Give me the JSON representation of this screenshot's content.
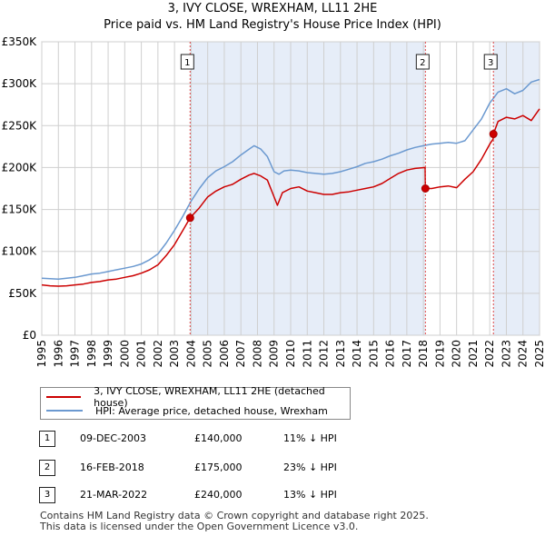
{
  "title_line1": "3, IVY CLOSE, WREXHAM, LL11 2HE",
  "title_line2": "Price paid vs. HM Land Registry's House Price Index (HPI)",
  "chart_data": {
    "type": "line",
    "title": "Price paid vs. HM Land Registry's House Price Index (HPI)",
    "xlim": [
      1995,
      2025
    ],
    "ylim": [
      0,
      350000
    ],
    "x_ticks": [
      "1995",
      "1996",
      "1997",
      "1998",
      "1999",
      "2000",
      "2001",
      "2002",
      "2003",
      "2004",
      "2005",
      "2006",
      "2007",
      "2008",
      "2009",
      "2010",
      "2011",
      "2012",
      "2013",
      "2014",
      "2015",
      "2016",
      "2017",
      "2018",
      "2019",
      "2020",
      "2021",
      "2022",
      "2023",
      "2024",
      "2025"
    ],
    "y_ticks": [
      {
        "value": 0,
        "label": "£0"
      },
      {
        "value": 50000,
        "label": "£50K"
      },
      {
        "value": 100000,
        "label": "£100K"
      },
      {
        "value": 150000,
        "label": "£150K"
      },
      {
        "value": 200000,
        "label": "£200K"
      },
      {
        "value": 250000,
        "label": "£250K"
      },
      {
        "value": 300000,
        "label": "£300K"
      },
      {
        "value": 350000,
        "label": "£350K"
      }
    ],
    "series": [
      {
        "name": "3, IVY CLOSE, WREXHAM, LL11 2HE (detached house)",
        "color": "#cc0000",
        "x": [
          1995.0,
          1995.5,
          1996.0,
          1996.5,
          1997.0,
          1997.5,
          1998.0,
          1998.5,
          1999.0,
          1999.5,
          2000.0,
          2000.5,
          2001.0,
          2001.5,
          2002.0,
          2002.5,
          2003.0,
          2003.5,
          2003.94,
          2004.5,
          2005.0,
          2005.5,
          2006.0,
          2006.5,
          2007.0,
          2007.5,
          2007.8,
          2008.2,
          2008.6,
          2008.9,
          2009.2,
          2009.5,
          2010.0,
          2010.5,
          2011.0,
          2011.5,
          2012.0,
          2012.5,
          2013.0,
          2013.5,
          2014.0,
          2014.5,
          2015.0,
          2015.5,
          2016.0,
          2016.5,
          2017.0,
          2017.5,
          2018.1,
          2018.12,
          2018.5,
          2019.0,
          2019.5,
          2020.0,
          2020.5,
          2021.0,
          2021.5,
          2022.0,
          2022.2,
          2022.22,
          2022.5,
          2023.0,
          2023.5,
          2024.0,
          2024.5,
          2025.0
        ],
        "y": [
          60000,
          59000,
          58500,
          59000,
          60000,
          61000,
          63000,
          64000,
          66000,
          67000,
          69000,
          71000,
          74000,
          78000,
          84000,
          95000,
          108000,
          125000,
          140000,
          152000,
          165000,
          172000,
          177000,
          180000,
          186000,
          191000,
          193000,
          190000,
          185000,
          170000,
          155000,
          170000,
          175000,
          177000,
          172000,
          170000,
          168000,
          168000,
          170000,
          171000,
          173000,
          175000,
          177000,
          181000,
          187000,
          193000,
          197000,
          199000,
          200000,
          175000,
          175000,
          177000,
          178000,
          176000,
          186000,
          195000,
          210000,
          228000,
          234000,
          240000,
          255000,
          260000,
          258000,
          262000,
          256000,
          270000
        ]
      },
      {
        "name": "HPI: Average price, detached house, Wrexham",
        "color": "#6b99d0",
        "x": [
          1995.0,
          1995.5,
          1996.0,
          1996.5,
          1997.0,
          1997.5,
          1998.0,
          1998.5,
          1999.0,
          1999.5,
          2000.0,
          2000.5,
          2001.0,
          2001.5,
          2002.0,
          2002.5,
          2003.0,
          2003.5,
          2004.0,
          2004.5,
          2005.0,
          2005.5,
          2006.0,
          2006.5,
          2007.0,
          2007.5,
          2007.8,
          2008.2,
          2008.6,
          2009.0,
          2009.3,
          2009.6,
          2010.0,
          2010.5,
          2011.0,
          2011.5,
          2012.0,
          2012.5,
          2013.0,
          2013.5,
          2014.0,
          2014.5,
          2015.0,
          2015.5,
          2016.0,
          2016.5,
          2017.0,
          2017.5,
          2018.0,
          2018.5,
          2019.0,
          2019.5,
          2020.0,
          2020.5,
          2021.0,
          2021.5,
          2022.0,
          2022.5,
          2023.0,
          2023.5,
          2024.0,
          2024.5,
          2025.0
        ],
        "y": [
          68000,
          67500,
          67000,
          68000,
          69000,
          71000,
          73000,
          74000,
          76000,
          78000,
          80000,
          82000,
          85000,
          90000,
          97000,
          110000,
          125000,
          142000,
          160000,
          175000,
          188000,
          196000,
          201000,
          207000,
          215000,
          222000,
          226000,
          222000,
          213000,
          195000,
          192000,
          196000,
          197000,
          196000,
          194000,
          193000,
          192000,
          193000,
          195000,
          198000,
          201000,
          205000,
          207000,
          210000,
          214000,
          217000,
          221000,
          224000,
          226000,
          228000,
          229000,
          230000,
          229000,
          232000,
          245000,
          258000,
          277000,
          290000,
          294000,
          288000,
          292000,
          302000,
          305000
        ]
      }
    ],
    "markers": [
      {
        "label": "1",
        "x": 2003.94,
        "y": 140000
      },
      {
        "label": "2",
        "x": 2018.12,
        "y": 175000
      },
      {
        "label": "3",
        "x": 2022.22,
        "y": 240000
      }
    ],
    "shaded_periods": [
      {
        "from": 2003.94,
        "to": 2018.12
      },
      {
        "from": 2022.22,
        "to": 2025.0
      }
    ]
  },
  "legend": {
    "series1_label": "3, IVY CLOSE, WREXHAM, LL11 2HE (detached house)",
    "series2_label": "HPI: Average price, detached house, Wrexham"
  },
  "transactions": [
    {
      "num": "1",
      "date": "09-DEC-2003",
      "price": "£140,000",
      "hpi": "11% ↓ HPI"
    },
    {
      "num": "2",
      "date": "16-FEB-2018",
      "price": "£175,000",
      "hpi": "23% ↓ HPI"
    },
    {
      "num": "3",
      "date": "21-MAR-2022",
      "price": "£240,000",
      "hpi": "13% ↓ HPI"
    }
  ],
  "footer": {
    "line1": "Contains HM Land Registry data © Crown copyright and database right 2025.",
    "line2": "This data is licensed under the Open Government Licence v3.0."
  },
  "colors": {
    "property": "#cc0000",
    "hpi": "#6b99d0",
    "shade": "#dce6f5",
    "marker_line": "#dd4444"
  }
}
